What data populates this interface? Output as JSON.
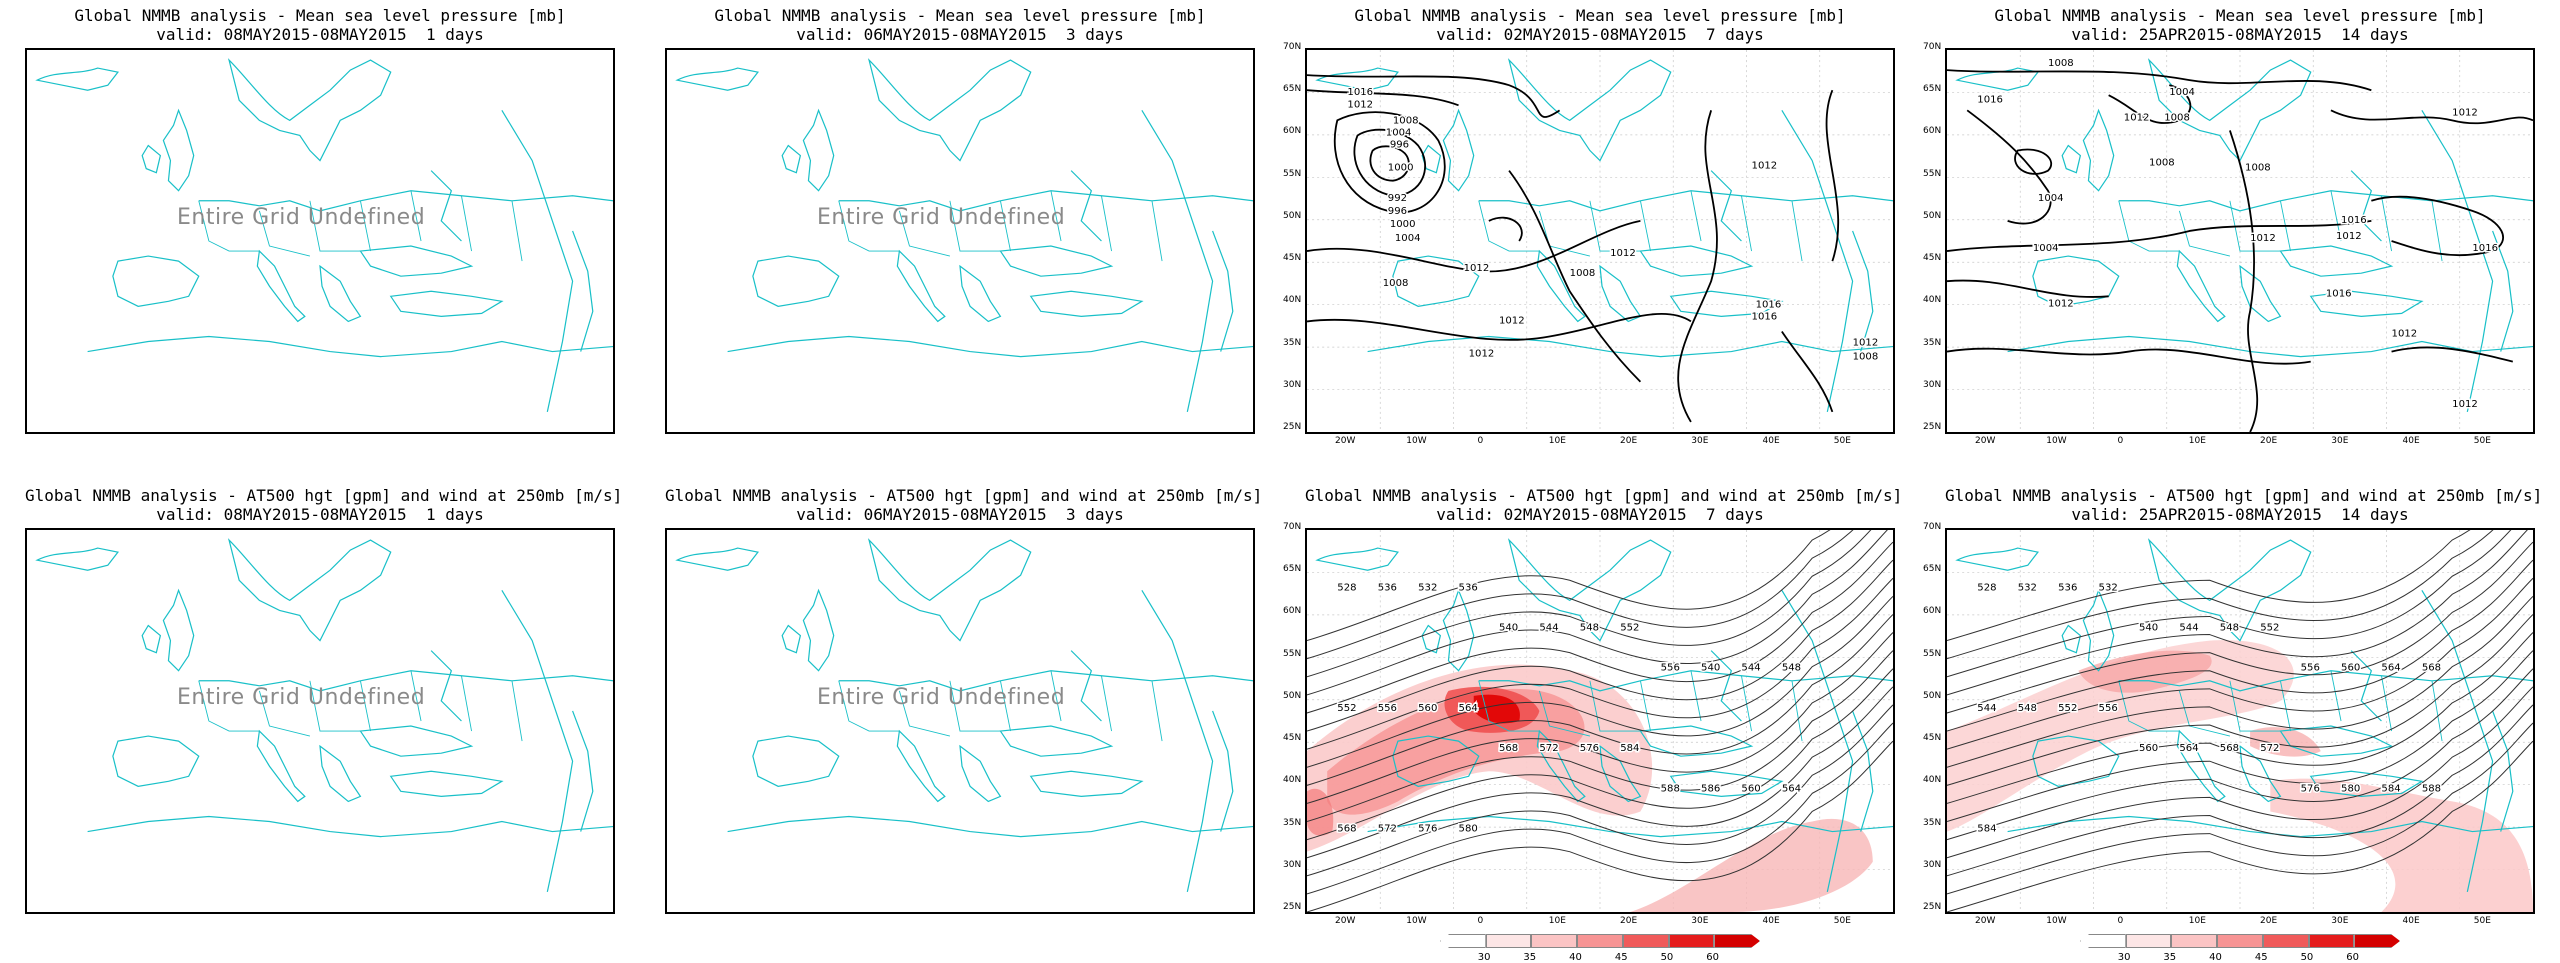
{
  "panels": [
    {
      "id": "mslp-1",
      "title_line1": "Global NMMB analysis - Mean sea level pressure [mb]",
      "title_line2": "valid: 08MAY2015-08MAY2015  1 days",
      "undefined_text": "Entire Grid Undefined"
    },
    {
      "id": "mslp-3",
      "title_line1": "Global NMMB analysis - Mean sea level pressure [mb]",
      "title_line2": "valid: 06MAY2015-08MAY2015  3 days",
      "undefined_text": "Entire Grid Undefined"
    },
    {
      "id": "mslp-7",
      "title_line1": "Global NMMB analysis - Mean sea level pressure [mb]",
      "title_line2": "valid: 02MAY2015-08MAY2015  7 days",
      "contour_labels": [
        "1016",
        "1012",
        "1008",
        "1004",
        "996",
        "1000",
        "992",
        "996",
        "1000",
        "1004",
        "1008",
        "1012",
        "1012",
        "1012",
        "1012",
        "1008",
        "1012",
        "1016",
        "1016",
        "1012",
        "1008"
      ]
    },
    {
      "id": "mslp-14",
      "title_line1": "Global NMMB analysis - Mean sea level pressure [mb]",
      "title_line2": "valid: 25APR2015-08MAY2015  14 days",
      "contour_labels": [
        "1008",
        "1016",
        "1004",
        "1012",
        "1008",
        "1008",
        "1004",
        "1004",
        "1008",
        "1012",
        "1012",
        "1012",
        "1016",
        "1012",
        "1016",
        "1016",
        "1012",
        "1012"
      ]
    },
    {
      "id": "z500-1",
      "title_line1": "Global NMMB analysis - AT500 hgt [gpm] and wind at 250mb [m/s]",
      "title_line2": "valid: 08MAY2015-08MAY2015  1 days",
      "undefined_text": "Entire Grid Undefined"
    },
    {
      "id": "z500-3",
      "title_line1": "Global NMMB analysis - AT500 hgt [gpm] and wind at 250mb [m/s]",
      "title_line2": "valid: 06MAY2015-08MAY2015  3 days",
      "undefined_text": "Entire Grid Undefined"
    },
    {
      "id": "z500-7",
      "title_line1": "Global NMMB analysis - AT500 hgt [gpm] and wind at 250mb [m/s]",
      "title_line2": "valid: 02MAY2015-08MAY2015  7 days",
      "contour_labels": [
        "528",
        "536",
        "532",
        "536",
        "540",
        "544",
        "548",
        "552",
        "556",
        "540",
        "544",
        "548",
        "552",
        "556",
        "560",
        "564",
        "568",
        "572",
        "576",
        "584",
        "588",
        "586",
        "560",
        "564",
        "568",
        "572",
        "576",
        "580"
      ]
    },
    {
      "id": "z500-14",
      "title_line1": "Global NMMB analysis - AT500 hgt [gpm] and wind at 250mb [m/s]",
      "title_line2": "valid: 25APR2015-08MAY2015  14 days",
      "contour_labels": [
        "528",
        "532",
        "536",
        "532",
        "540",
        "544",
        "548",
        "552",
        "556",
        "560",
        "564",
        "568",
        "544",
        "548",
        "552",
        "556",
        "560",
        "564",
        "568",
        "572",
        "576",
        "580",
        "584",
        "588",
        "584"
      ]
    }
  ],
  "axes": {
    "lat_labels": [
      "70N",
      "65N",
      "60N",
      "55N",
      "50N",
      "45N",
      "40N",
      "35N",
      "30N",
      "25N"
    ],
    "lon_labels": [
      "20W",
      "10W",
      "0",
      "10E",
      "20E",
      "30E",
      "40E",
      "50E"
    ]
  },
  "colorbar": {
    "values": [
      "30",
      "35",
      "40",
      "45",
      "50",
      "60"
    ],
    "colors": [
      "#ffffff",
      "#fde6e6",
      "#fbc4c4",
      "#f79494",
      "#f05a5a",
      "#e51c1c",
      "#d40000"
    ]
  },
  "colors": {
    "coast": "#19c0c8",
    "contour": "#000000",
    "wind": "#e8191b"
  }
}
